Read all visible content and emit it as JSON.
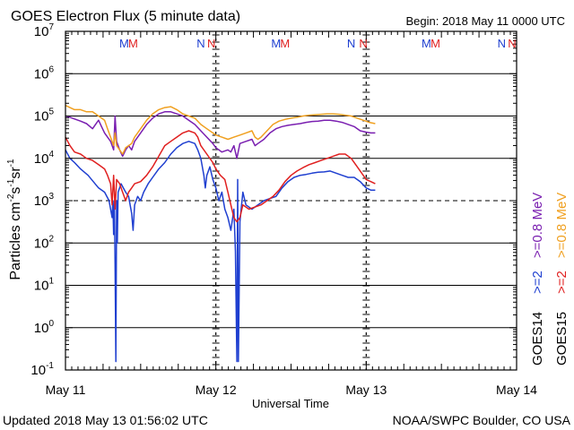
{
  "chart_data": {
    "type": "line",
    "title": "GOES Electron Flux (5 minute data)",
    "begin": "Begin: 2018 May 11 0000 UTC",
    "xlabel": "Universal Time",
    "ylabel_main": "Particles cm",
    "ylabel_exp1": "-2",
    "ylabel_mid": "s",
    "ylabel_exp2": "-1",
    "ylabel_sr": "sr",
    "ylabel_exp3": "-1",
    "y_scale": "log",
    "ylim_exp": [
      -1,
      7
    ],
    "xlim_days": [
      0,
      3
    ],
    "x_ticks": [
      {
        "day": 0,
        "label": "May 11"
      },
      {
        "day": 1,
        "label": "May 12"
      },
      {
        "day": 2,
        "label": "May 13"
      },
      {
        "day": 3,
        "label": "May 14"
      }
    ],
    "y_ticks": [
      {
        "exp": 7,
        "mant": "10",
        "sup": "7"
      },
      {
        "exp": 6,
        "mant": "10",
        "sup": "6"
      },
      {
        "exp": 5,
        "mant": "10",
        "sup": "5"
      },
      {
        "exp": 4,
        "mant": "10",
        "sup": "4"
      },
      {
        "exp": 3,
        "mant": "10",
        "sup": "3"
      },
      {
        "exp": 2,
        "mant": "10",
        "sup": "2"
      },
      {
        "exp": 1,
        "mant": "10",
        "sup": "1"
      },
      {
        "exp": 0,
        "mant": "10",
        "sup": "0"
      },
      {
        "exp": -1,
        "mant": "10",
        "sup": "-1"
      }
    ],
    "grid_solid": [
      6,
      5,
      4,
      2,
      1,
      0
    ],
    "grid_dashed": [
      3
    ],
    "mn_markers": [
      {
        "day": 0.42,
        "letter": "M",
        "color": "#1f3fd0"
      },
      {
        "day": 0.48,
        "letter": "M",
        "color": "#e02020"
      },
      {
        "day": 0.93,
        "letter": "N",
        "color": "#1f3fd0"
      },
      {
        "day": 1.0,
        "letter": "N",
        "color": "#e02020"
      },
      {
        "day": 1.43,
        "letter": "M",
        "color": "#1f3fd0"
      },
      {
        "day": 1.49,
        "letter": "M",
        "color": "#e02020"
      },
      {
        "day": 1.93,
        "letter": "N",
        "color": "#1f3fd0"
      },
      {
        "day": 2.01,
        "letter": "N",
        "color": "#e02020"
      },
      {
        "day": 2.43,
        "letter": "M",
        "color": "#1f3fd0"
      },
      {
        "day": 2.49,
        "letter": "M",
        "color": "#e02020"
      },
      {
        "day": 2.93,
        "letter": "N",
        "color": "#1f3fd0"
      },
      {
        "day": 3.0,
        "letter": "N",
        "color": "#e02020"
      }
    ],
    "day_dividers": [
      1,
      2
    ],
    "legend": [
      {
        "text": "GOES14",
        "color": "#000000"
      },
      {
        "text": ">=2",
        "color": "#1f3fd0"
      },
      {
        "text": ">=0.8  MeV",
        "color": "#7a1fb0"
      },
      {
        "text": "GOES15",
        "color": "#000000"
      },
      {
        "text": ">=2",
        "color": "#e02020"
      },
      {
        "text": ">=0.8  MeV",
        "color": "#f0a020"
      }
    ],
    "series": [
      {
        "name": "GOES14 >=2",
        "color": "#1f3fd0",
        "points": [
          [
            0,
            4.2
          ],
          [
            0.03,
            4.0
          ],
          [
            0.06,
            3.9
          ],
          [
            0.1,
            3.75
          ],
          [
            0.15,
            3.6
          ],
          [
            0.22,
            3.3
          ],
          [
            0.26,
            3.2
          ],
          [
            0.29,
            3.0
          ],
          [
            0.31,
            2.6
          ],
          [
            0.315,
            3.0
          ],
          [
            0.32,
            2.2
          ],
          [
            0.325,
            3.0
          ],
          [
            0.33,
            1.5
          ],
          [
            0.335,
            -0.8
          ],
          [
            0.34,
            3.0
          ],
          [
            0.345,
            2.0
          ],
          [
            0.35,
            3.2
          ],
          [
            0.37,
            3.4
          ],
          [
            0.4,
            3.2
          ],
          [
            0.42,
            3.1
          ],
          [
            0.44,
            2.7
          ],
          [
            0.45,
            2.3
          ],
          [
            0.46,
            2.9
          ],
          [
            0.48,
            3.1
          ],
          [
            0.5,
            3.0
          ],
          [
            0.52,
            3.2
          ],
          [
            0.55,
            3.4
          ],
          [
            0.58,
            3.55
          ],
          [
            0.62,
            3.75
          ],
          [
            0.66,
            3.9
          ],
          [
            0.7,
            4.1
          ],
          [
            0.74,
            4.25
          ],
          [
            0.78,
            4.35
          ],
          [
            0.82,
            4.4
          ],
          [
            0.86,
            4.35
          ],
          [
            0.88,
            4.2
          ],
          [
            0.9,
            4.0
          ],
          [
            0.92,
            3.6
          ],
          [
            0.93,
            3.3
          ],
          [
            0.94,
            3.6
          ],
          [
            0.96,
            3.8
          ],
          [
            0.98,
            3.5
          ],
          [
            1.0,
            3.3
          ],
          [
            1.02,
            3.0
          ],
          [
            1.04,
            3.2
          ],
          [
            1.06,
            2.8
          ],
          [
            1.08,
            2.6
          ],
          [
            1.1,
            2.3
          ],
          [
            1.12,
            2.8
          ],
          [
            1.13,
            1.8
          ],
          [
            1.14,
            -0.8
          ],
          [
            1.145,
            3.5
          ],
          [
            1.15,
            -0.8
          ],
          [
            1.16,
            2.5
          ],
          [
            1.18,
            3.2
          ],
          [
            1.2,
            2.9
          ],
          [
            1.24,
            2.8
          ],
          [
            1.28,
            2.9
          ],
          [
            1.32,
            3.0
          ],
          [
            1.36,
            3.05
          ],
          [
            1.4,
            3.1
          ],
          [
            1.44,
            3.3
          ],
          [
            1.48,
            3.45
          ],
          [
            1.52,
            3.55
          ],
          [
            1.56,
            3.6
          ],
          [
            1.6,
            3.62
          ],
          [
            1.64,
            3.65
          ],
          [
            1.68,
            3.67
          ],
          [
            1.72,
            3.68
          ],
          [
            1.76,
            3.7
          ],
          [
            1.8,
            3.65
          ],
          [
            1.84,
            3.6
          ],
          [
            1.88,
            3.55
          ],
          [
            1.92,
            3.55
          ],
          [
            1.96,
            3.45
          ],
          [
            2.0,
            3.3
          ],
          [
            2.03,
            3.25
          ],
          [
            2.06,
            3.25
          ]
        ]
      },
      {
        "name": "GOES14 >=0.8",
        "color": "#7a1fb0",
        "points": [
          [
            0,
            5.0
          ],
          [
            0.03,
            4.97
          ],
          [
            0.06,
            4.93
          ],
          [
            0.1,
            4.88
          ],
          [
            0.14,
            4.82
          ],
          [
            0.18,
            4.7
          ],
          [
            0.2,
            4.8
          ],
          [
            0.22,
            4.9
          ],
          [
            0.24,
            4.75
          ],
          [
            0.26,
            4.6
          ],
          [
            0.28,
            4.5
          ],
          [
            0.3,
            4.4
          ],
          [
            0.32,
            4.2
          ],
          [
            0.33,
            5.0
          ],
          [
            0.34,
            4.4
          ],
          [
            0.36,
            4.2
          ],
          [
            0.38,
            4.05
          ],
          [
            0.4,
            4.2
          ],
          [
            0.42,
            4.3
          ],
          [
            0.44,
            4.2
          ],
          [
            0.46,
            4.4
          ],
          [
            0.5,
            4.6
          ],
          [
            0.54,
            4.8
          ],
          [
            0.58,
            4.95
          ],
          [
            0.62,
            5.05
          ],
          [
            0.66,
            5.1
          ],
          [
            0.7,
            5.1
          ],
          [
            0.74,
            5.05
          ],
          [
            0.78,
            5.0
          ],
          [
            0.82,
            4.9
          ],
          [
            0.86,
            4.8
          ],
          [
            0.9,
            4.65
          ],
          [
            0.94,
            4.5
          ],
          [
            0.98,
            4.35
          ],
          [
            1.0,
            4.25
          ],
          [
            1.02,
            4.2
          ],
          [
            1.04,
            4.15
          ],
          [
            1.08,
            4.2
          ],
          [
            1.1,
            4.15
          ],
          [
            1.12,
            4.3
          ],
          [
            1.14,
            4.0
          ],
          [
            1.16,
            4.35
          ],
          [
            1.2,
            4.4
          ],
          [
            1.24,
            4.45
          ],
          [
            1.26,
            4.3
          ],
          [
            1.28,
            4.35
          ],
          [
            1.32,
            4.45
          ],
          [
            1.36,
            4.6
          ],
          [
            1.4,
            4.7
          ],
          [
            1.44,
            4.75
          ],
          [
            1.48,
            4.78
          ],
          [
            1.52,
            4.8
          ],
          [
            1.56,
            4.82
          ],
          [
            1.6,
            4.85
          ],
          [
            1.64,
            4.87
          ],
          [
            1.68,
            4.88
          ],
          [
            1.72,
            4.9
          ],
          [
            1.76,
            4.9
          ],
          [
            1.8,
            4.88
          ],
          [
            1.84,
            4.85
          ],
          [
            1.88,
            4.8
          ],
          [
            1.92,
            4.75
          ],
          [
            1.96,
            4.65
          ],
          [
            2.0,
            4.62
          ],
          [
            2.03,
            4.6
          ],
          [
            2.06,
            4.6
          ]
        ]
      },
      {
        "name": "GOES15 >=2",
        "color": "#e02020",
        "points": [
          [
            0,
            4.5
          ],
          [
            0.03,
            4.3
          ],
          [
            0.06,
            4.15
          ],
          [
            0.1,
            4.1
          ],
          [
            0.14,
            4.0
          ],
          [
            0.18,
            3.95
          ],
          [
            0.22,
            3.85
          ],
          [
            0.26,
            3.75
          ],
          [
            0.28,
            3.6
          ],
          [
            0.3,
            3.4
          ],
          [
            0.31,
            2.9
          ],
          [
            0.32,
            3.6
          ],
          [
            0.33,
            2.8
          ],
          [
            0.34,
            3.5
          ],
          [
            0.36,
            3.4
          ],
          [
            0.38,
            3.2
          ],
          [
            0.4,
            3.0
          ],
          [
            0.42,
            3.2
          ],
          [
            0.44,
            3.3
          ],
          [
            0.46,
            3.4
          ],
          [
            0.5,
            3.45
          ],
          [
            0.54,
            3.6
          ],
          [
            0.58,
            3.8
          ],
          [
            0.62,
            4.05
          ],
          [
            0.66,
            4.3
          ],
          [
            0.7,
            4.4
          ],
          [
            0.74,
            4.5
          ],
          [
            0.78,
            4.6
          ],
          [
            0.82,
            4.65
          ],
          [
            0.86,
            4.6
          ],
          [
            0.88,
            4.5
          ],
          [
            0.9,
            4.3
          ],
          [
            0.94,
            4.1
          ],
          [
            0.98,
            3.9
          ],
          [
            1.0,
            3.75
          ],
          [
            1.03,
            3.6
          ],
          [
            1.06,
            3.5
          ],
          [
            1.08,
            3.2
          ],
          [
            1.1,
            2.9
          ],
          [
            1.12,
            2.6
          ],
          [
            1.14,
            2.5
          ],
          [
            1.16,
            2.6
          ],
          [
            1.18,
            2.9
          ],
          [
            1.2,
            2.85
          ],
          [
            1.22,
            2.8
          ],
          [
            1.26,
            2.85
          ],
          [
            1.3,
            2.9
          ],
          [
            1.34,
            3.0
          ],
          [
            1.38,
            3.1
          ],
          [
            1.42,
            3.25
          ],
          [
            1.46,
            3.45
          ],
          [
            1.5,
            3.6
          ],
          [
            1.54,
            3.7
          ],
          [
            1.58,
            3.78
          ],
          [
            1.62,
            3.85
          ],
          [
            1.66,
            3.9
          ],
          [
            1.7,
            3.95
          ],
          [
            1.74,
            4.0
          ],
          [
            1.78,
            4.05
          ],
          [
            1.82,
            4.1
          ],
          [
            1.86,
            4.1
          ],
          [
            1.9,
            4.0
          ],
          [
            1.94,
            3.8
          ],
          [
            1.98,
            3.6
          ],
          [
            2.0,
            3.5
          ],
          [
            2.03,
            3.45
          ],
          [
            2.06,
            3.4
          ]
        ]
      },
      {
        "name": "GOES15 >=0.8",
        "color": "#f0a020",
        "points": [
          [
            0,
            5.25
          ],
          [
            0.03,
            5.2
          ],
          [
            0.06,
            5.15
          ],
          [
            0.1,
            5.15
          ],
          [
            0.14,
            5.1
          ],
          [
            0.18,
            5.1
          ],
          [
            0.22,
            5.0
          ],
          [
            0.26,
            4.9
          ],
          [
            0.28,
            4.7
          ],
          [
            0.3,
            4.5
          ],
          [
            0.32,
            4.3
          ],
          [
            0.33,
            4.6
          ],
          [
            0.34,
            4.3
          ],
          [
            0.36,
            4.2
          ],
          [
            0.38,
            4.1
          ],
          [
            0.4,
            4.25
          ],
          [
            0.42,
            4.3
          ],
          [
            0.44,
            4.35
          ],
          [
            0.46,
            4.5
          ],
          [
            0.5,
            4.7
          ],
          [
            0.54,
            4.9
          ],
          [
            0.58,
            5.05
          ],
          [
            0.62,
            5.15
          ],
          [
            0.66,
            5.2
          ],
          [
            0.7,
            5.22
          ],
          [
            0.74,
            5.15
          ],
          [
            0.78,
            5.05
          ],
          [
            0.82,
            5.0
          ],
          [
            0.86,
            4.95
          ],
          [
            0.9,
            4.8
          ],
          [
            0.94,
            4.7
          ],
          [
            0.98,
            4.6
          ],
          [
            1.0,
            4.55
          ],
          [
            1.04,
            4.5
          ],
          [
            1.08,
            4.45
          ],
          [
            1.12,
            4.5
          ],
          [
            1.16,
            4.55
          ],
          [
            1.2,
            4.6
          ],
          [
            1.24,
            4.65
          ],
          [
            1.26,
            4.5
          ],
          [
            1.28,
            4.45
          ],
          [
            1.3,
            4.5
          ],
          [
            1.34,
            4.65
          ],
          [
            1.38,
            4.8
          ],
          [
            1.42,
            4.88
          ],
          [
            1.46,
            4.92
          ],
          [
            1.5,
            4.95
          ],
          [
            1.54,
            4.97
          ],
          [
            1.58,
            5.0
          ],
          [
            1.62,
            5.02
          ],
          [
            1.66,
            5.03
          ],
          [
            1.7,
            5.04
          ],
          [
            1.74,
            5.05
          ],
          [
            1.78,
            5.05
          ],
          [
            1.82,
            5.04
          ],
          [
            1.86,
            5.02
          ],
          [
            1.9,
            5.0
          ],
          [
            1.94,
            4.95
          ],
          [
            1.98,
            4.9
          ],
          [
            2.02,
            4.85
          ],
          [
            2.06,
            4.82
          ]
        ]
      }
    ]
  },
  "footer": {
    "updated": "Updated 2018 May 13 01:56:02 UTC",
    "credit": "NOAA/SWPC Boulder, CO USA"
  }
}
